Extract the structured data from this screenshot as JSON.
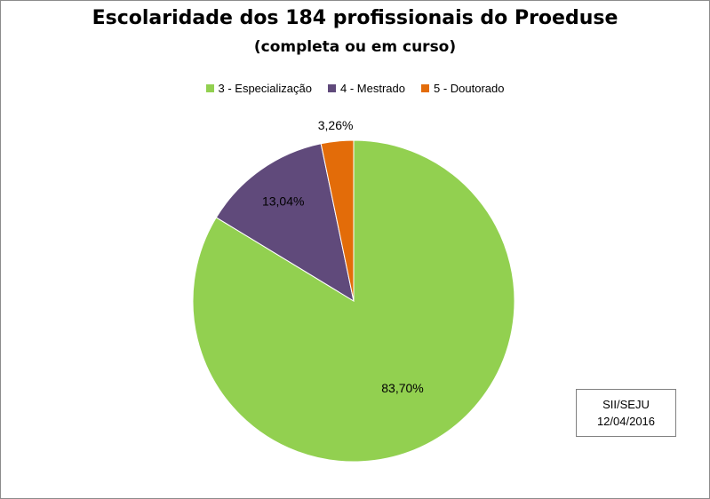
{
  "chart_data": {
    "type": "pie",
    "title": "Escolaridade dos 184 profissionais do Proeduse",
    "subtitle": "(completa ou em curso)",
    "legend_position": "top",
    "slices": [
      {
        "label": "3 - Especialização",
        "value": 83.7,
        "display": "83,70%",
        "color": "#92d050"
      },
      {
        "label": "4 - Mestrado",
        "value": 13.04,
        "display": "13,04%",
        "color": "#604a7b"
      },
      {
        "label": "5 - Doutorado",
        "value": 3.26,
        "display": "3,26%",
        "color": "#e36c09"
      }
    ]
  },
  "source_note": {
    "line1": "SII/SEJU",
    "line2": "12/04/2016"
  }
}
